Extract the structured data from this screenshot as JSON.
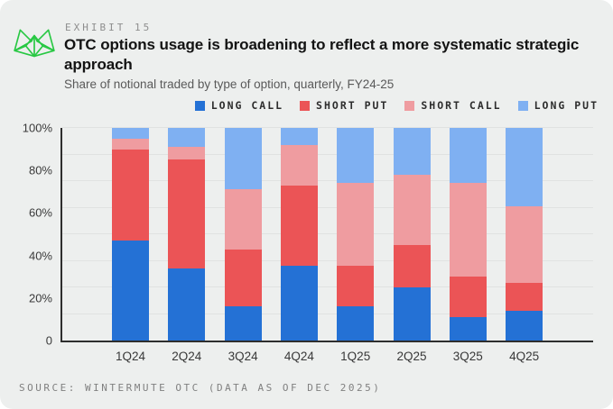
{
  "header": {
    "exhibit_label": "EXHIBIT 15",
    "title": "OTC options usage is broadening to reflect a more systematic strategic approach",
    "subtitle": "Share of notional traded by type of option, quarterly, FY24-25"
  },
  "footer": {
    "source": "SOURCE: WINTERMUTE OTC (DATA AS OF DEC 2025)"
  },
  "brand": {
    "logo_color": "#28c843"
  },
  "chart_data": {
    "type": "bar",
    "variant": "stacked-100-percent",
    "title": "OTC options usage is broadening to reflect a more systematic strategic approach",
    "subtitle": "Share of notional traded by type of option, quarterly, FY24-25",
    "categories": [
      "1Q24",
      "2Q24",
      "3Q24",
      "4Q24",
      "1Q25",
      "2Q25",
      "3Q25",
      "4Q25"
    ],
    "series": [
      {
        "name": "LONG CALL",
        "color": "#2471d5",
        "values": [
          47,
          34,
          16,
          35,
          16,
          25,
          11,
          14
        ]
      },
      {
        "name": "SHORT PUT",
        "color": "#eb5456",
        "values": [
          43,
          51,
          27,
          38,
          19,
          20,
          19,
          13
        ]
      },
      {
        "name": "SHORT CALL",
        "color": "#ef9ca0",
        "values": [
          5,
          6,
          28,
          19,
          39,
          33,
          44,
          36
        ]
      },
      {
        "name": "LONG PUT",
        "color": "#7fb0f2",
        "values": [
          5,
          9,
          29,
          8,
          26,
          22,
          26,
          37
        ]
      }
    ],
    "value_unit": "% of notional",
    "ylim": [
      0,
      100
    ],
    "y_ticks": [
      {
        "value": 100,
        "label": "100%"
      },
      {
        "value": 80,
        "label": "80%"
      },
      {
        "value": 60,
        "label": "60%"
      },
      {
        "value": 40,
        "label": "40%"
      },
      {
        "value": 20,
        "label": "20%"
      },
      {
        "value": 0,
        "label": "0"
      }
    ],
    "grid": {
      "horizontal": true,
      "interval_pct": 12.5
    },
    "legend_position": "top-right"
  }
}
